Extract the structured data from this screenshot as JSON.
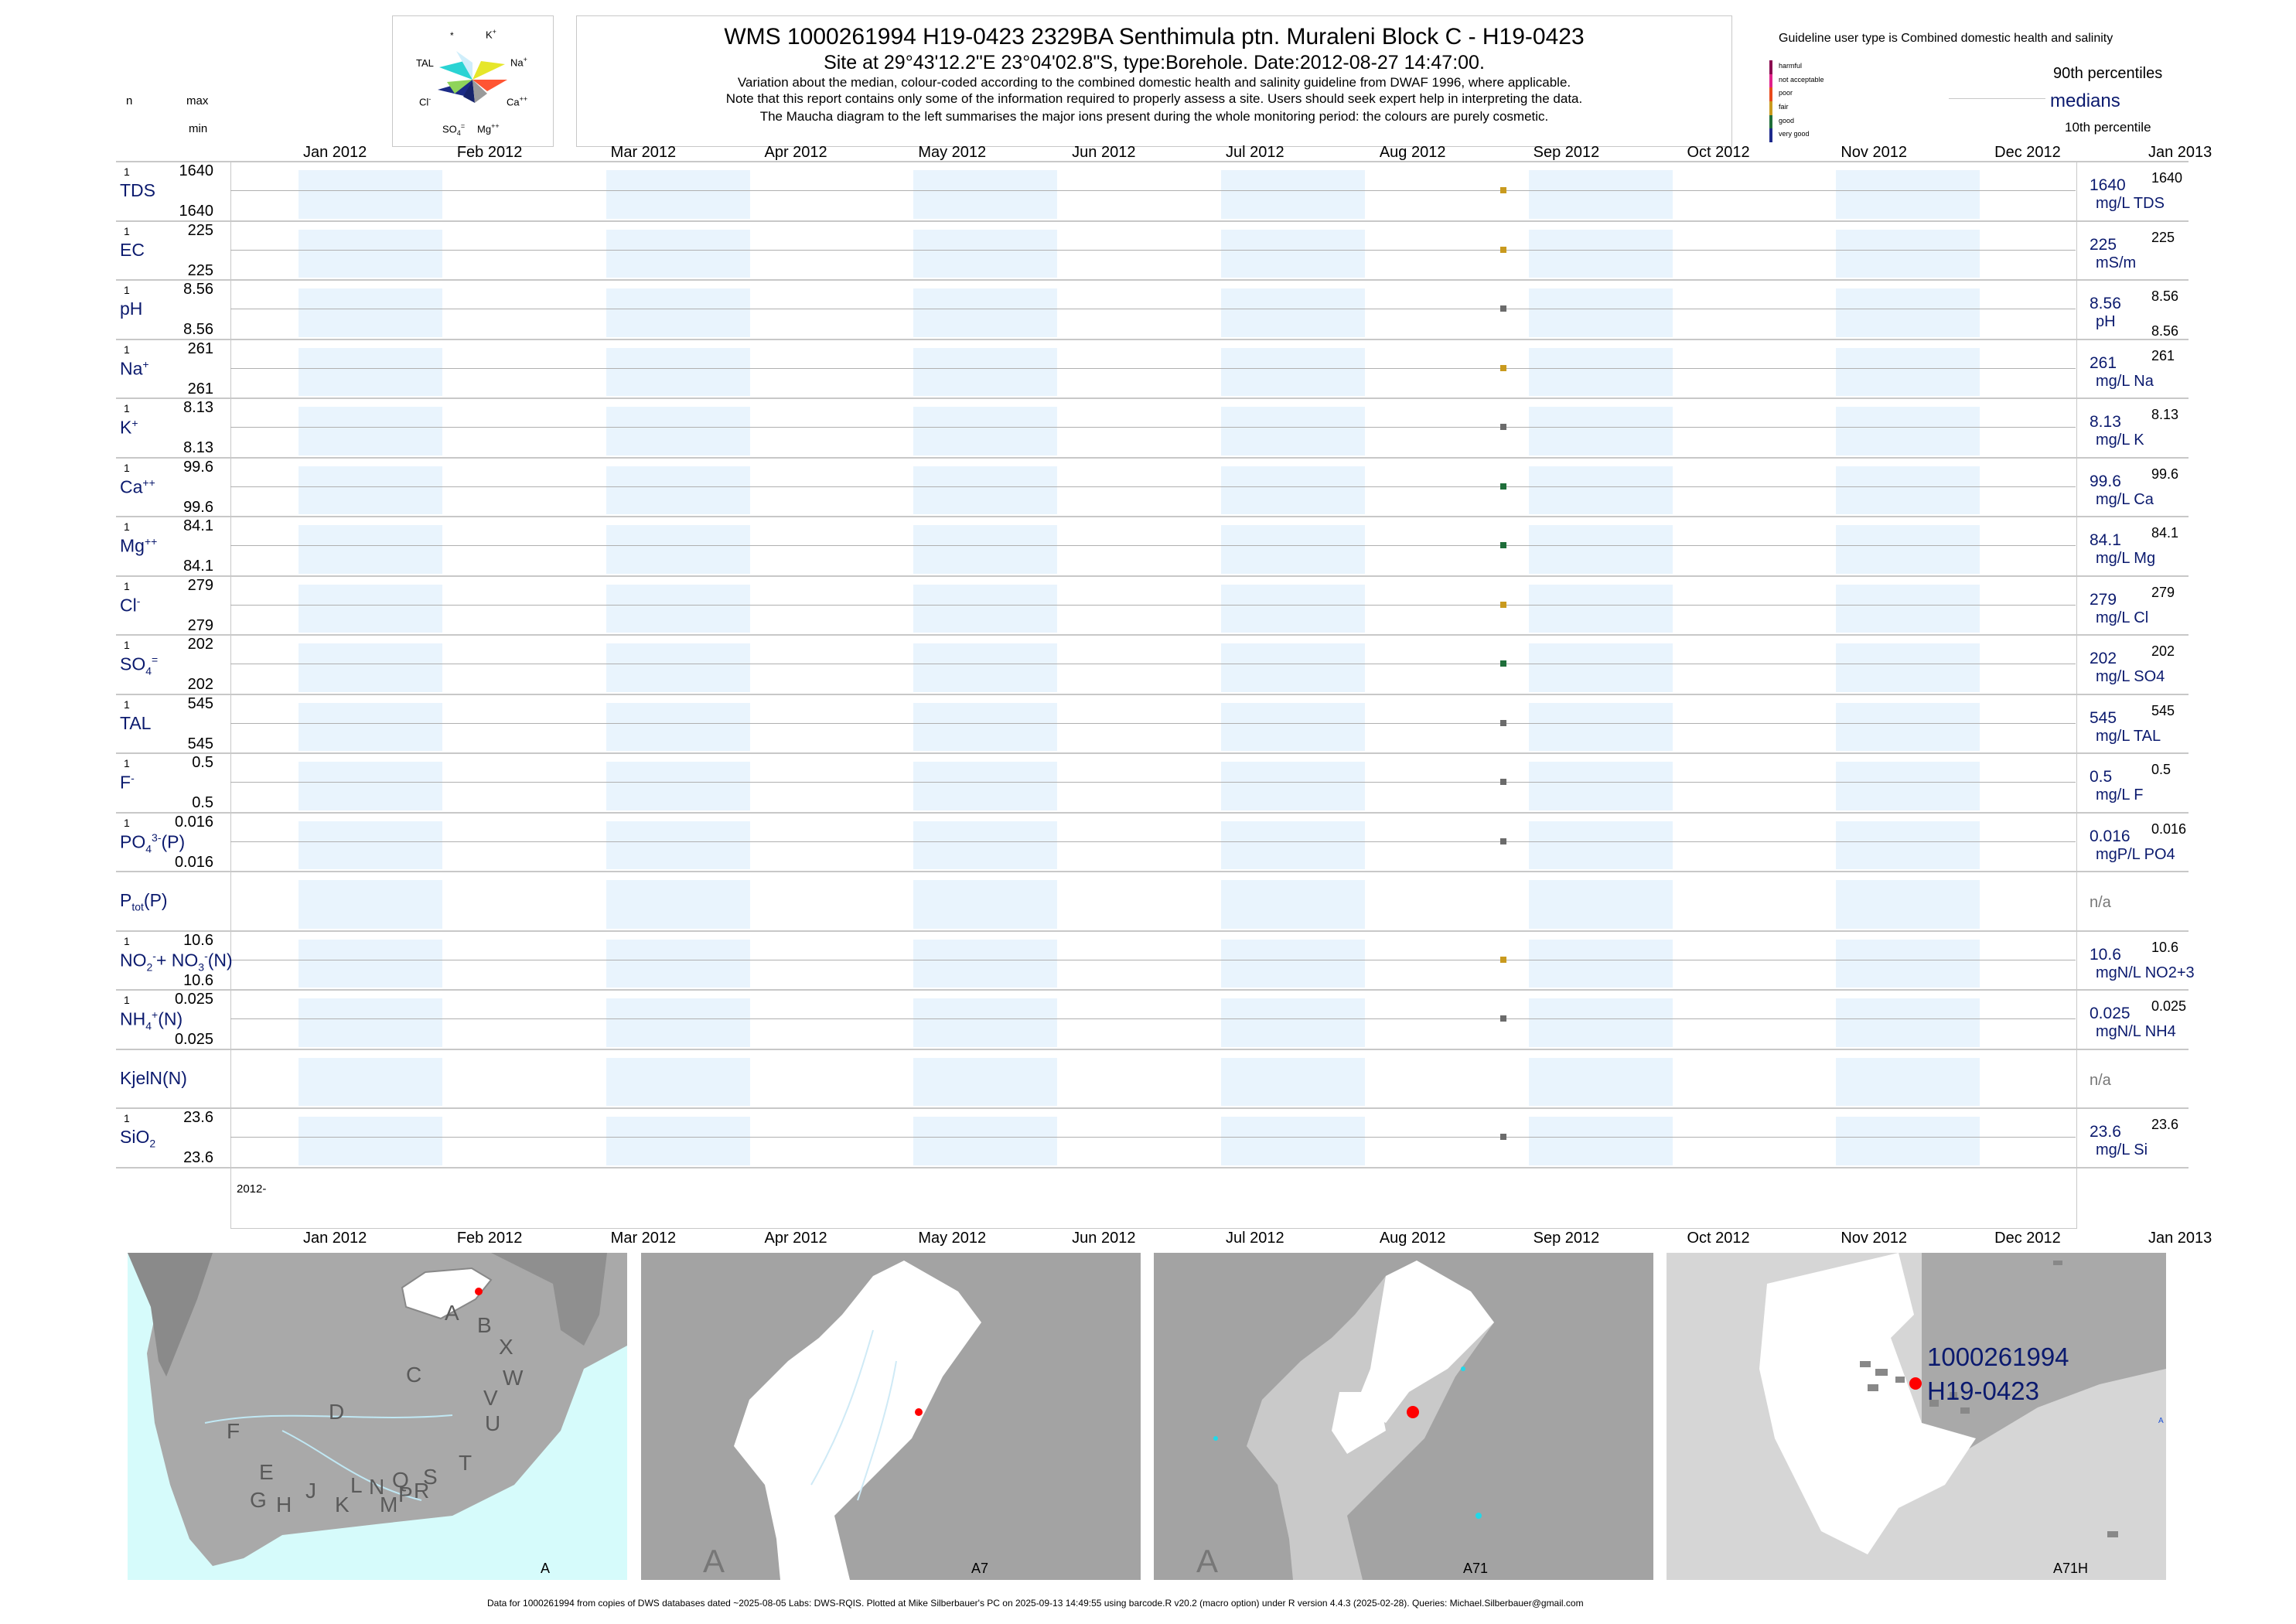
{
  "header": {
    "title": "WMS 1000261994 H19-0423 2329BA Senthimula ptn. Muraleni Block C - H19-0423",
    "site": "Site at 29°43'12.2\"E 23°04'02.8\"S, type:Borehole. Date:2012-08-27 14:47:00.",
    "note1": "Variation about the median,  colour-coded according to the combined domestic health and salinity guideline from DWAF 1996, where applicable.",
    "note2": "Note that this report contains only some of the information required to properly assess a site. Users should seek expert help in interpreting the data.",
    "note3": "The Maucha diagram to the left summarises the major ions present during the whole monitoring period: the colours are purely cosmetic."
  },
  "left_header": {
    "n": "n",
    "max": "max",
    "min": "min"
  },
  "maucha": {
    "star": "*",
    "k": "K",
    "k_sup": "+",
    "tal": "TAL",
    "na": "Na",
    "na_sup": "+",
    "cl": "Cl",
    "cl_sup": "-",
    "ca": "Ca",
    "ca_sup": "++",
    "so4": "SO",
    "so4_sub": "4",
    "so4_sup": "=",
    "mg": "Mg",
    "mg_sup": "++"
  },
  "legend": {
    "title": "Guideline user type is Combined domestic health and salinity",
    "categories": [
      {
        "label": "harmful",
        "color": "#8b0a50"
      },
      {
        "label": "not acceptable",
        "color": "#e0218a"
      },
      {
        "label": "poor",
        "color": "#e84a1c"
      },
      {
        "label": "fair",
        "color": "#c99a1e"
      },
      {
        "label": "good",
        "color": "#1f6e3a"
      },
      {
        "label": "very good",
        "color": "#1e2a8c"
      }
    ],
    "p90": "90th percentiles",
    "medians": "medians",
    "p10": "10th percentile"
  },
  "months": [
    "Jan 2012",
    "Feb 2012",
    "Mar 2012",
    "Apr 2012",
    "May 2012",
    "Jun 2012",
    "Jul 2012",
    "Aug 2012",
    "Sep 2012",
    "Oct 2012",
    "Nov 2012",
    "Dec 2012",
    "Jan 2013"
  ],
  "year_label": "2012-",
  "chart_data": {
    "type": "scatter",
    "sample_date": "2012-08-27",
    "x_range": [
      "2012-01-01",
      "2013-01-01"
    ],
    "rows": [
      {
        "name": "TDS",
        "sup": "",
        "sub": "",
        "n": "1",
        "max": "1640",
        "min": "1640",
        "value": 1640,
        "unit": "mg/L TDS",
        "right_max": "1640",
        "right_min": "",
        "color": "#c99a1e"
      },
      {
        "name": "EC",
        "sup": "",
        "sub": "",
        "n": "1",
        "max": "225",
        "min": "225",
        "value": 225,
        "unit": "mS/m",
        "right_max": "225",
        "right_min": "",
        "color": "#c99a1e"
      },
      {
        "name": "pH",
        "sup": "",
        "sub": "",
        "n": "1",
        "max": "8.56",
        "min": "8.56",
        "value": 8.56,
        "unit": "pH",
        "right_max": "8.56",
        "right_min": "8.56",
        "color": "#6b6b6b"
      },
      {
        "name": "Na",
        "sup": "+",
        "sub": "",
        "n": "1",
        "max": "261",
        "min": "261",
        "value": 261,
        "unit": "mg/L Na",
        "right_max": "261",
        "right_min": "",
        "color": "#c99a1e"
      },
      {
        "name": "K",
        "sup": "+",
        "sub": "",
        "n": "1",
        "max": "8.13",
        "min": "8.13",
        "value": 8.13,
        "unit": "mg/L K",
        "right_max": "8.13",
        "right_min": "",
        "color": "#6b6b6b"
      },
      {
        "name": "Ca",
        "sup": "++",
        "sub": "",
        "n": "1",
        "max": "99.6",
        "min": "99.6",
        "value": 99.6,
        "unit": "mg/L Ca",
        "right_max": "99.6",
        "right_min": "",
        "color": "#1f6e3a"
      },
      {
        "name": "Mg",
        "sup": "++",
        "sub": "",
        "n": "1",
        "max": "84.1",
        "min": "84.1",
        "value": 84.1,
        "unit": "mg/L Mg",
        "right_max": "84.1",
        "right_min": "",
        "color": "#1f6e3a"
      },
      {
        "name": "Cl",
        "sup": "-",
        "sub": "",
        "n": "1",
        "max": "279",
        "min": "279",
        "value": 279,
        "unit": "mg/L Cl",
        "right_max": "279",
        "right_min": "",
        "color": "#c99a1e"
      },
      {
        "name": "SO",
        "sup": "=",
        "sub": "4",
        "n": "1",
        "max": "202",
        "min": "202",
        "value": 202,
        "unit": "mg/L SO4",
        "right_max": "202",
        "right_min": "",
        "color": "#1f6e3a"
      },
      {
        "name": "TAL",
        "sup": "",
        "sub": "",
        "n": "1",
        "max": "545",
        "min": "545",
        "value": 545,
        "unit": "mg/L TAL",
        "right_max": "545",
        "right_min": "",
        "color": "#6b6b6b"
      },
      {
        "name": "F",
        "sup": "-",
        "sub": "",
        "n": "1",
        "max": "0.5",
        "min": "0.5",
        "value": 0.5,
        "unit": "mg/L F",
        "right_max": "0.5",
        "right_min": "",
        "color": "#6b6b6b"
      },
      {
        "name": "PO",
        "sup": "3-",
        "sub": "4",
        "suffix": "(P)",
        "n": "1",
        "max": "0.016",
        "min": "0.016",
        "value": 0.016,
        "unit": "mgP/L PO4",
        "right_max": "0.016",
        "right_min": "",
        "color": "#6b6b6b"
      },
      {
        "name": "P",
        "sup": "",
        "sub": "tot",
        "suffix": "(P)",
        "n": "",
        "max": "",
        "min": "",
        "value": null,
        "unit": "",
        "right_max": "",
        "right_min": "",
        "na": "n/a"
      },
      {
        "name": "NO",
        "sup": "-",
        "sub": "2",
        "suffix": "+ NO",
        "suffix_sup": "-",
        "suffix_sub": "3",
        "suffix2": "(N)",
        "n": "1",
        "max": "10.6",
        "min": "10.6",
        "value": 10.6,
        "unit": "mgN/L NO2+3",
        "right_max": "10.6",
        "right_min": "",
        "color": "#c99a1e"
      },
      {
        "name": "NH",
        "sup": "+",
        "sub": "4",
        "suffix": "(N)",
        "n": "1",
        "max": "0.025",
        "min": "0.025",
        "value": 0.025,
        "unit": "mgN/L NH4",
        "right_max": "0.025",
        "right_min": "",
        "color": "#6b6b6b"
      },
      {
        "name": "KjelN(N)",
        "sup": "",
        "sub": "",
        "n": "",
        "max": "",
        "min": "",
        "value": null,
        "unit": "",
        "right_max": "",
        "right_min": "",
        "na": "n/a"
      },
      {
        "name": "SiO",
        "sup": "",
        "sub": "2",
        "n": "1",
        "max": "23.6",
        "min": "23.6",
        "value": 23.6,
        "unit": "mg/L Si",
        "right_max": "23.6",
        "right_min": "",
        "color": "#6b6b6b"
      }
    ]
  },
  "maps": [
    {
      "label": "A",
      "letters": [
        "A",
        "B",
        "X",
        "C",
        "W",
        "D",
        "V",
        "U",
        "F",
        "T",
        "E",
        "S",
        "G",
        "H",
        "J",
        "K",
        "L",
        "M",
        "N",
        "P",
        "Q",
        "R"
      ]
    },
    {
      "label": "A7",
      "big": "A"
    },
    {
      "label": "A71",
      "big": "A"
    },
    {
      "label": "A71H",
      "site_line1": "1000261994",
      "site_line2": "H19-0423",
      "edge_text": "A"
    }
  ],
  "footer": "Data for 1000261994 from copies of DWS databases dated ~2025-08-05 Labs: DWS-RQIS. Plotted at Mike Silberbauer's PC on 2025-09-13 14:49:55 using barcode.R v20.2 (macro option) under R version 4.4.3 (2025-02-28). Queries: Michael.Silberbauer@gmail.com"
}
